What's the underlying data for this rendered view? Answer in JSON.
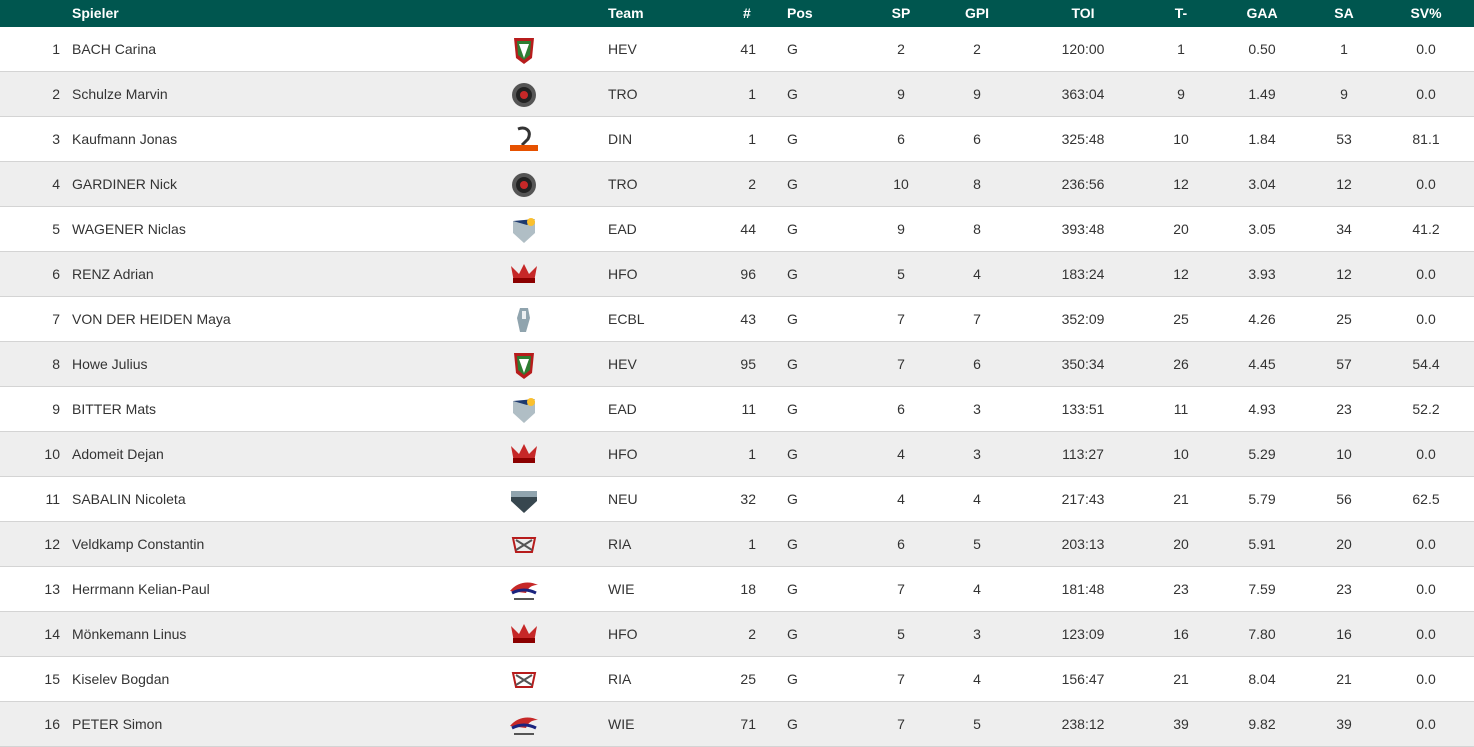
{
  "colors": {
    "header_bg": "#00564f",
    "row_alt": "#eeeeee"
  },
  "headers": {
    "player": "Spieler",
    "team": "Team",
    "number": "#",
    "pos": "Pos",
    "sp": "SP",
    "gpi": "GPI",
    "toi": "TOI",
    "ga": "T-",
    "gaa": "GAA",
    "sa": "SA",
    "svp": "SV%"
  },
  "rows": [
    {
      "rank": "1",
      "name": "BACH Carina",
      "logo": "hev-logo",
      "team": "HEV",
      "num": "41",
      "pos": "G",
      "sp": "2",
      "gpi": "2",
      "toi": "120:00",
      "ga": "1",
      "gaa": "0.50",
      "sa": "1",
      "svp": "0.0"
    },
    {
      "rank": "2",
      "name": "Schulze Marvin",
      "logo": "tro-logo",
      "team": "TRO",
      "num": "1",
      "pos": "G",
      "sp": "9",
      "gpi": "9",
      "toi": "363:04",
      "ga": "9",
      "gaa": "1.49",
      "sa": "9",
      "svp": "0.0"
    },
    {
      "rank": "3",
      "name": "Kaufmann Jonas",
      "logo": "din-logo",
      "team": "DIN",
      "num": "1",
      "pos": "G",
      "sp": "6",
      "gpi": "6",
      "toi": "325:48",
      "ga": "10",
      "gaa": "1.84",
      "sa": "53",
      "svp": "81.1"
    },
    {
      "rank": "4",
      "name": "GARDINER Nick",
      "logo": "tro-logo",
      "team": "TRO",
      "num": "2",
      "pos": "G",
      "sp": "10",
      "gpi": "8",
      "toi": "236:56",
      "ga": "12",
      "gaa": "3.04",
      "sa": "12",
      "svp": "0.0"
    },
    {
      "rank": "5",
      "name": "WAGENER Niclas",
      "logo": "ead-logo",
      "team": "EAD",
      "num": "44",
      "pos": "G",
      "sp": "9",
      "gpi": "8",
      "toi": "393:48",
      "ga": "20",
      "gaa": "3.05",
      "sa": "34",
      "svp": "41.2"
    },
    {
      "rank": "6",
      "name": "RENZ Adrian",
      "logo": "hfo-logo",
      "team": "HFO",
      "num": "96",
      "pos": "G",
      "sp": "5",
      "gpi": "4",
      "toi": "183:24",
      "ga": "12",
      "gaa": "3.93",
      "sa": "12",
      "svp": "0.0"
    },
    {
      "rank": "7",
      "name": "VON DER HEIDEN Maya",
      "logo": "ecbl-logo",
      "team": "ECBL",
      "num": "43",
      "pos": "G",
      "sp": "7",
      "gpi": "7",
      "toi": "352:09",
      "ga": "25",
      "gaa": "4.26",
      "sa": "25",
      "svp": "0.0"
    },
    {
      "rank": "8",
      "name": "Howe Julius",
      "logo": "hev-logo",
      "team": "HEV",
      "num": "95",
      "pos": "G",
      "sp": "7",
      "gpi": "6",
      "toi": "350:34",
      "ga": "26",
      "gaa": "4.45",
      "sa": "57",
      "svp": "54.4"
    },
    {
      "rank": "9",
      "name": "BITTER Mats",
      "logo": "ead-logo",
      "team": "EAD",
      "num": "11",
      "pos": "G",
      "sp": "6",
      "gpi": "3",
      "toi": "133:51",
      "ga": "11",
      "gaa": "4.93",
      "sa": "23",
      "svp": "52.2"
    },
    {
      "rank": "10",
      "name": "Adomeit Dejan",
      "logo": "hfo-logo",
      "team": "HFO",
      "num": "1",
      "pos": "G",
      "sp": "4",
      "gpi": "3",
      "toi": "113:27",
      "ga": "10",
      "gaa": "5.29",
      "sa": "10",
      "svp": "0.0"
    },
    {
      "rank": "11",
      "name": "SABALIN Nicoleta",
      "logo": "neu-logo",
      "team": "NEU",
      "num": "32",
      "pos": "G",
      "sp": "4",
      "gpi": "4",
      "toi": "217:43",
      "ga": "21",
      "gaa": "5.79",
      "sa": "56",
      "svp": "62.5"
    },
    {
      "rank": "12",
      "name": "Veldkamp Constantin",
      "logo": "ria-logo",
      "team": "RIA",
      "num": "1",
      "pos": "G",
      "sp": "6",
      "gpi": "5",
      "toi": "203:13",
      "ga": "20",
      "gaa": "5.91",
      "sa": "20",
      "svp": "0.0"
    },
    {
      "rank": "13",
      "name": "Herrmann Kelian-Paul",
      "logo": "wie-logo",
      "team": "WIE",
      "num": "18",
      "pos": "G",
      "sp": "7",
      "gpi": "4",
      "toi": "181:48",
      "ga": "23",
      "gaa": "7.59",
      "sa": "23",
      "svp": "0.0"
    },
    {
      "rank": "14",
      "name": "Mönkemann Linus",
      "logo": "hfo-logo",
      "team": "HFO",
      "num": "2",
      "pos": "G",
      "sp": "5",
      "gpi": "3",
      "toi": "123:09",
      "ga": "16",
      "gaa": "7.80",
      "sa": "16",
      "svp": "0.0"
    },
    {
      "rank": "15",
      "name": "Kiselev Bogdan",
      "logo": "ria-logo",
      "team": "RIA",
      "num": "25",
      "pos": "G",
      "sp": "7",
      "gpi": "4",
      "toi": "156:47",
      "ga": "21",
      "gaa": "8.04",
      "sa": "21",
      "svp": "0.0"
    },
    {
      "rank": "16",
      "name": "PETER Simon",
      "logo": "wie-logo",
      "team": "WIE",
      "num": "71",
      "pos": "G",
      "sp": "7",
      "gpi": "5",
      "toi": "238:12",
      "ga": "39",
      "gaa": "9.82",
      "sa": "39",
      "svp": "0.0"
    }
  ]
}
